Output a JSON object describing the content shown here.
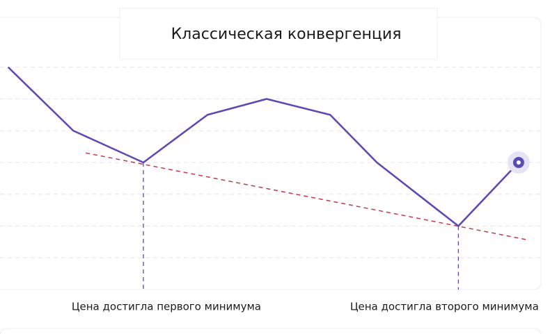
{
  "chart_data": {
    "type": "line",
    "title": "Классическая конвергенция",
    "x": [
      1.5,
      13.5,
      26.4,
      38.2,
      49.1,
      60.8,
      69.4,
      84.4,
      95.5
    ],
    "values": [
      7,
      5,
      4,
      5.5,
      6,
      5.5,
      4,
      2,
      4
    ],
    "color": "#5a4bb3",
    "trendline": {
      "x": [
        15.8,
        97
      ],
      "values": [
        4.3,
        1.57
      ],
      "color": "#c4384a"
    },
    "markers": [
      {
        "x": 26.4,
        "label": "Цена достигла первого минимума"
      },
      {
        "x": 84.4,
        "label": "Цена достигла второго минимума"
      }
    ],
    "xlim": [
      0,
      100
    ],
    "ylim": [
      0,
      8
    ],
    "yticks": [
      1,
      2,
      3,
      4,
      5,
      6,
      7
    ],
    "grid": true,
    "highlight_last": true
  }
}
